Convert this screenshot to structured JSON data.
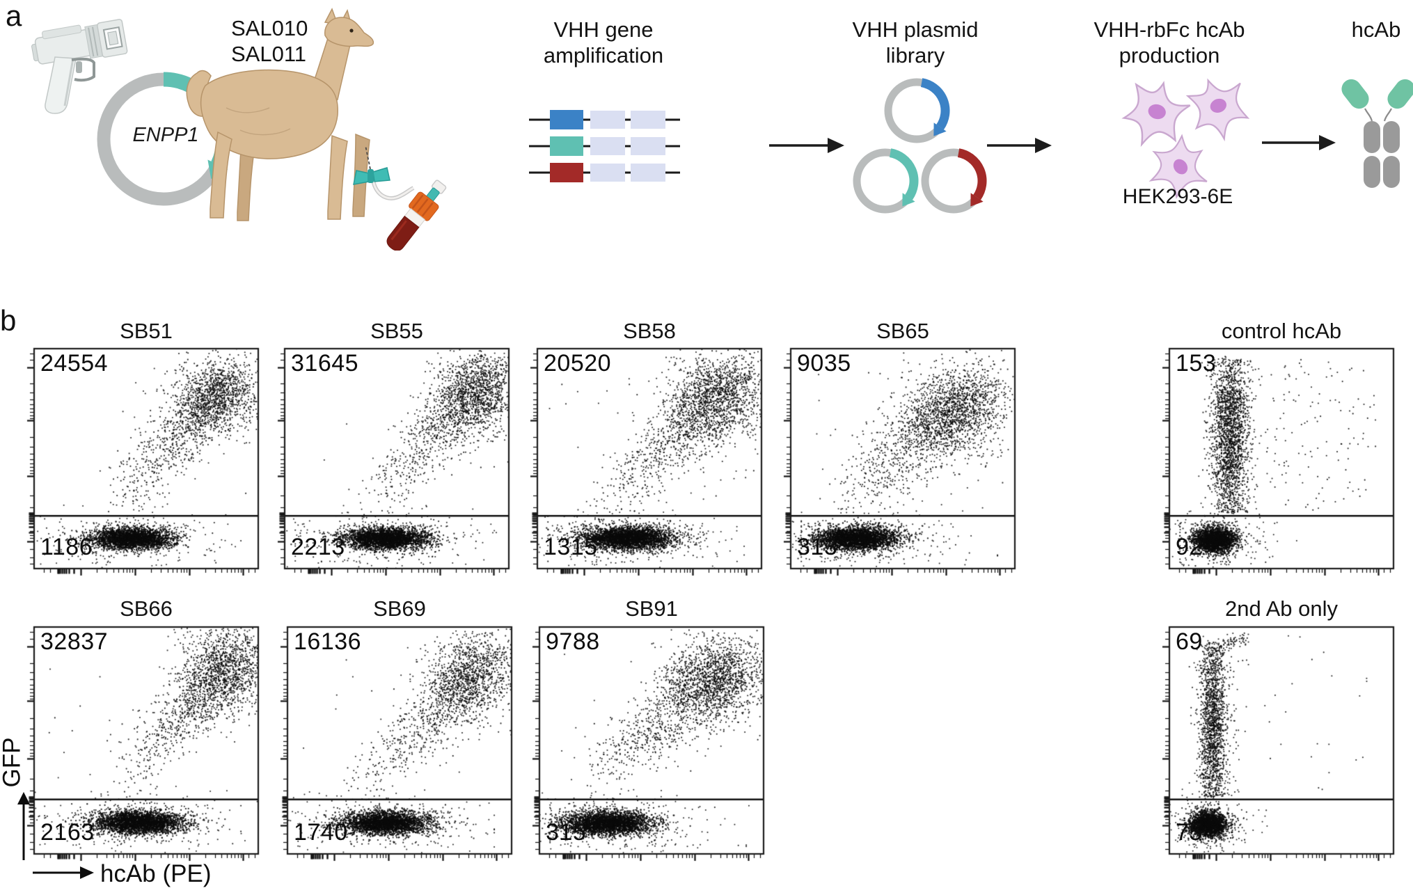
{
  "panel_a": {
    "label": "a",
    "plasmid_gene": "ENPP1",
    "llama_ids": [
      "SAL010",
      "SAL011"
    ],
    "steps": [
      {
        "title_lines": [
          "VHH gene",
          "amplification"
        ]
      },
      {
        "title_lines": [
          "VHH plasmid",
          "library"
        ]
      },
      {
        "title_lines": [
          "VHH-rbFc hcAb",
          "production"
        ],
        "cell_line": "HEK293-6E"
      },
      {
        "title_lines": [
          "hcAb"
        ]
      }
    ],
    "colors": {
      "teal": "#5fc0b2",
      "blue": "#3b82c6",
      "dark_red": "#a32a28",
      "plasmid_ring_gray": "#b9bcbc",
      "gene_segment_lavender": "#dadff2",
      "cell_fill": "#eddbf0",
      "cell_nucleus": "#c783d1",
      "antibody_vhh_teal": "#6fc3a3",
      "antibody_fc_gray": "#9a9a9a",
      "llama_tan": "#d9bb94",
      "tube_cap_orange": "#e2691f",
      "blood_red": "#7e1d15"
    }
  },
  "panel_b": {
    "label": "b",
    "y_axis_label": "GFP",
    "x_axis_label": "hcAb (PE)"
  },
  "chart_data": {
    "type": "scatter",
    "subtype": "flow-cytometry-dot-plots",
    "x_axis": {
      "label": "hcAb (PE)",
      "scale": "biexponential-log",
      "tick_labels": []
    },
    "y_axis": {
      "label": "GFP",
      "scale": "biexponential-log",
      "tick_labels": []
    },
    "gate": "horizontal gate line; upper-left number = events above gate, lower-left number = events below gate",
    "gate_y_fraction": 0.757,
    "plots": [
      {
        "id": "SB51",
        "title": "SB51",
        "upper_count": "24554",
        "lower_count": "1186",
        "pattern": "diagonal double-positive",
        "populations": {
          "neg": {
            "cx": 0.44,
            "cy": 0.862,
            "sx": 0.092,
            "sy": 0.024,
            "n": 2700
          },
          "band": {
            "x0": 0.36,
            "y0": 0.7,
            "x1": 0.9,
            "y1": 0.13,
            "n": 950,
            "jx": 0.07,
            "jy": 0.055
          },
          "cloud": {
            "cx": 0.8,
            "cy": 0.225,
            "sx": 0.095,
            "sy": 0.085,
            "n": 900
          },
          "below_sparse": 45,
          "above_sparse": 20
        }
      },
      {
        "id": "SB55",
        "title": "SB55",
        "upper_count": "31645",
        "lower_count": "2213",
        "pattern": "diagonal double-positive",
        "populations": {
          "neg": {
            "cx": 0.45,
            "cy": 0.862,
            "sx": 0.095,
            "sy": 0.024,
            "n": 2900
          },
          "band": {
            "x0": 0.38,
            "y0": 0.72,
            "x1": 0.94,
            "y1": 0.1,
            "n": 900,
            "jx": 0.07,
            "jy": 0.055
          },
          "cloud": {
            "cx": 0.845,
            "cy": 0.21,
            "sx": 0.1,
            "sy": 0.1,
            "n": 1050
          },
          "below_sparse": 50,
          "above_sparse": 15
        }
      },
      {
        "id": "SB58",
        "title": "SB58",
        "upper_count": "20520",
        "lower_count": "1315",
        "pattern": "diagonal double-positive",
        "populations": {
          "neg": {
            "cx": 0.4,
            "cy": 0.86,
            "sx": 0.105,
            "sy": 0.026,
            "n": 3100
          },
          "band": {
            "x0": 0.3,
            "y0": 0.71,
            "x1": 0.9,
            "y1": 0.11,
            "n": 1150,
            "jx": 0.08,
            "jy": 0.06
          },
          "cloud": {
            "cx": 0.79,
            "cy": 0.25,
            "sx": 0.11,
            "sy": 0.105,
            "n": 950
          },
          "below_sparse": 55,
          "above_sparse": 25
        }
      },
      {
        "id": "SB65",
        "title": "SB65",
        "upper_count": "9035",
        "lower_count": "313",
        "pattern": "diagonal double-positive",
        "populations": {
          "neg": {
            "cx": 0.295,
            "cy": 0.862,
            "sx": 0.095,
            "sy": 0.026,
            "n": 2900
          },
          "band": {
            "x0": 0.24,
            "y0": 0.7,
            "x1": 0.86,
            "y1": 0.16,
            "n": 1250,
            "jx": 0.085,
            "jy": 0.07
          },
          "cloud": {
            "cx": 0.72,
            "cy": 0.3,
            "sx": 0.115,
            "sy": 0.1,
            "n": 950
          },
          "below_sparse": 60,
          "above_sparse": 25
        }
      },
      {
        "id": "control-hcAb",
        "title": "control hcAb",
        "upper_count": "153",
        "lower_count": "92",
        "pattern": "GFP-positive only, PE-negative vertical",
        "populations": {
          "neg": {
            "cx": 0.205,
            "cy": 0.868,
            "sx": 0.048,
            "sy": 0.028,
            "n": 2300
          },
          "vert": {
            "cx": 0.27,
            "sx": 0.042,
            "y0": 0.05,
            "y1": 0.745,
            "n": 2100,
            "blob_cy": 0.38,
            "blob_sy": 0.14,
            "blob_frac": 0.45
          },
          "right": {
            "n": 150
          },
          "below_sparse": 70
        }
      },
      {
        "id": "SB66",
        "title": "SB66",
        "upper_count": "32837",
        "lower_count": "2163",
        "pattern": "diagonal double-positive",
        "populations": {
          "neg": {
            "cx": 0.47,
            "cy": 0.86,
            "sx": 0.1,
            "sy": 0.025,
            "n": 2900
          },
          "band": {
            "x0": 0.38,
            "y0": 0.71,
            "x1": 0.94,
            "y1": 0.09,
            "n": 1000,
            "jx": 0.07,
            "jy": 0.055
          },
          "cloud": {
            "cx": 0.84,
            "cy": 0.2,
            "sx": 0.1,
            "sy": 0.1,
            "n": 950
          },
          "below_sparse": 45,
          "above_sparse": 15
        }
      },
      {
        "id": "SB69",
        "title": "SB69",
        "upper_count": "16136",
        "lower_count": "1740",
        "pattern": "diagonal double-positive",
        "populations": {
          "neg": {
            "cx": 0.435,
            "cy": 0.862,
            "sx": 0.1,
            "sy": 0.026,
            "n": 2700
          },
          "band": {
            "x0": 0.35,
            "y0": 0.71,
            "x1": 0.92,
            "y1": 0.11,
            "n": 1000,
            "jx": 0.07,
            "jy": 0.06
          },
          "cloud": {
            "cx": 0.8,
            "cy": 0.235,
            "sx": 0.1,
            "sy": 0.095,
            "n": 750
          },
          "below_sparse": 45,
          "above_sparse": 15
        }
      },
      {
        "id": "SB91",
        "title": "SB91",
        "upper_count": "9788",
        "lower_count": "315",
        "pattern": "diagonal double-positive",
        "populations": {
          "neg": {
            "cx": 0.3,
            "cy": 0.862,
            "sx": 0.1,
            "sy": 0.026,
            "n": 2900
          },
          "band": {
            "x0": 0.25,
            "y0": 0.69,
            "x1": 0.89,
            "y1": 0.13,
            "n": 1150,
            "jx": 0.08,
            "jy": 0.065
          },
          "cloud": {
            "cx": 0.765,
            "cy": 0.25,
            "sx": 0.115,
            "sy": 0.09,
            "n": 1050
          },
          "below_sparse": 55,
          "above_sparse": 20
        }
      },
      {
        "id": "2nd-Ab-only",
        "title": "2nd Ab only",
        "upper_count": "69",
        "lower_count": "75",
        "pattern": "GFP-positive only, PE-negative vertical",
        "populations": {
          "neg": {
            "cx": 0.175,
            "cy": 0.868,
            "sx": 0.042,
            "sy": 0.028,
            "n": 2100
          },
          "vert": {
            "cx": 0.195,
            "sx": 0.03,
            "y0": 0.07,
            "y1": 0.745,
            "n": 1700,
            "blob_cy": 0.42,
            "blob_sy": 0.15,
            "blob_frac": 0.4
          },
          "right": {
            "n": 28
          },
          "band": {
            "x0": 0.19,
            "y0": 0.105,
            "x1": 0.345,
            "y1": 0.045,
            "n": 70,
            "jx": 0.015,
            "jy": 0.012
          },
          "below_sparse": 30
        }
      }
    ]
  }
}
